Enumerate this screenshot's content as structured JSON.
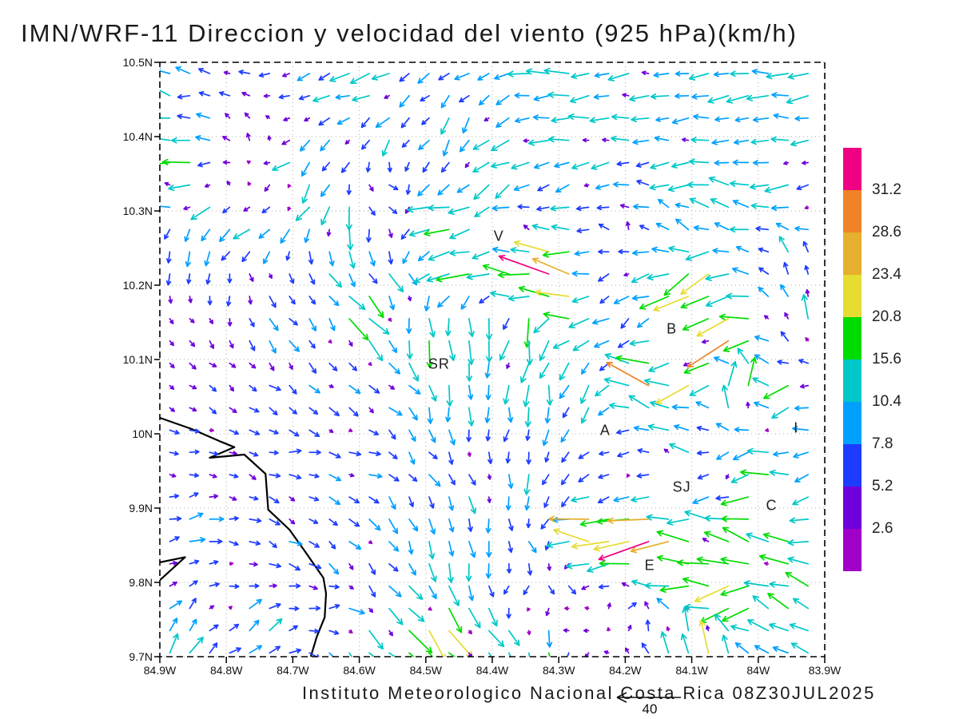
{
  "title": "IMN/WRF-11 Direccion y velocidad del viento (925 hPa)(km/h)",
  "caption": "Instituto Meteorologico Nacional Costa Rica 08Z30JUL2025",
  "reference_arrow": {
    "label": "40",
    "value_kmh": 40
  },
  "chart_data": {
    "type": "vector_field",
    "model": "IMN/WRF-11",
    "variable": "Direccion y velocidad del viento",
    "level": "925 hPa",
    "units": "km/h",
    "valid_time": "08Z30JUL2025",
    "lon_range_w": [
      84.9,
      83.9
    ],
    "lat_range_n": [
      10.5,
      9.7
    ],
    "lon_tick_labels": [
      "84.9W",
      "84.8W",
      "84.7W",
      "84.6W",
      "84.5W",
      "84.4W",
      "84.3W",
      "84.2W",
      "84.1W",
      "84W",
      "83.9W"
    ],
    "lon_tick_values": [
      84.9,
      84.8,
      84.7,
      84.6,
      84.5,
      84.4,
      84.3,
      84.2,
      84.1,
      84.0,
      83.9
    ],
    "lat_tick_labels": [
      "10.5N",
      "10.4N",
      "10.3N",
      "10.2N",
      "10.1N",
      "10N",
      "9.9N",
      "9.8N",
      "9.7N"
    ],
    "lat_tick_values": [
      10.5,
      10.4,
      10.3,
      10.2,
      10.1,
      10.0,
      9.9,
      9.8,
      9.7
    ],
    "grid_deg_spacing": 0.03,
    "speed_levels": [
      2.6,
      5.2,
      7.8,
      10.4,
      15.6,
      20.8,
      23.4,
      28.6,
      31.2
    ],
    "speed_colors": [
      "#A000C8",
      "#6E00DC",
      "#1E3CFF",
      "#00A0FF",
      "#00C8C8",
      "#00DC00",
      "#E6DC32",
      "#E6AF2D",
      "#F08228",
      "#F00082"
    ],
    "colorbar_labels": [
      "31.2",
      "28.6",
      "23.4",
      "20.8",
      "15.6",
      "10.4",
      "7.8",
      "5.2",
      "2.6"
    ],
    "grid_color": "#aaaaaa",
    "frame_color": "#000000",
    "coast_color": "#000000",
    "stations": [
      {
        "label": "V",
        "lon": 84.39,
        "lat": 10.265
      },
      {
        "label": "B",
        "lon": 84.13,
        "lat": 10.14
      },
      {
        "label": "SR",
        "lon": 84.48,
        "lat": 10.092
      },
      {
        "label": "A",
        "lon": 84.23,
        "lat": 10.003
      },
      {
        "label": "SJ",
        "lon": 84.115,
        "lat": 9.927
      },
      {
        "label": "C",
        "lon": 83.98,
        "lat": 9.902
      },
      {
        "label": "E",
        "lon": 84.163,
        "lat": 9.822
      },
      {
        "label": "I",
        "lon": 83.943,
        "lat": 10.006,
        "narrow": true
      }
    ],
    "coastline": [
      [
        [
          84.9,
          10.0215
        ],
        [
          84.852,
          10.0065
        ],
        [
          84.81,
          9.99
        ],
        [
          84.788,
          9.982
        ],
        [
          84.825,
          9.9677
        ],
        [
          84.773,
          9.972
        ],
        [
          84.741,
          9.946
        ],
        [
          84.737,
          9.898
        ],
        [
          84.705,
          9.871
        ],
        [
          84.682,
          9.842
        ],
        [
          84.654,
          9.806
        ],
        [
          84.65,
          9.785
        ],
        [
          84.652,
          9.753
        ],
        [
          84.664,
          9.727
        ],
        [
          84.673,
          9.7
        ]
      ],
      [
        [
          84.9,
          9.827
        ],
        [
          84.862,
          9.834
        ],
        [
          84.9,
          9.803
        ]
      ]
    ],
    "wind_samples_lon_lat_u_v_kmh": [
      [
        84.87,
        10.48,
        -9,
        6
      ],
      [
        84.6,
        10.48,
        -12,
        -2
      ],
      [
        84.3,
        10.48,
        -13,
        0
      ],
      [
        84.0,
        10.48,
        -13,
        0
      ],
      [
        83.92,
        10.48,
        -12,
        -1
      ],
      [
        84.85,
        10.445,
        -7,
        0
      ],
      [
        84.6,
        10.445,
        -10,
        -4
      ],
      [
        84.2,
        10.445,
        -12,
        0
      ],
      [
        83.95,
        10.445,
        -11,
        0
      ],
      [
        84.87,
        10.42,
        -10,
        3
      ],
      [
        84.78,
        10.415,
        -3,
        4
      ],
      [
        84.6,
        10.41,
        -7,
        -7
      ],
      [
        84.45,
        10.41,
        -5,
        -8
      ],
      [
        84.25,
        10.41,
        -11,
        -1
      ],
      [
        84.0,
        10.41,
        -10,
        -1
      ],
      [
        84.87,
        10.39,
        -13,
        1
      ],
      [
        84.75,
        10.39,
        2,
        5
      ],
      [
        84.55,
        10.385,
        -4,
        -8
      ],
      [
        84.35,
        10.39,
        -11,
        -2
      ],
      [
        83.93,
        10.39,
        -10,
        -2
      ],
      [
        84.87,
        10.365,
        -18,
        1
      ],
      [
        84.7,
        10.36,
        -8,
        -6
      ],
      [
        84.45,
        10.36,
        -2,
        -7
      ],
      [
        84.55,
        10.35,
        6,
        -2
      ],
      [
        84.88,
        10.335,
        -12,
        4
      ],
      [
        84.83,
        10.31,
        -13,
        -8
      ],
      [
        84.78,
        10.33,
        1,
        4
      ],
      [
        84.68,
        10.33,
        -5,
        -9
      ],
      [
        84.5,
        10.345,
        -6,
        -6
      ],
      [
        84.4,
        10.33,
        -13,
        -10
      ],
      [
        84.3,
        10.345,
        -9,
        -3
      ],
      [
        84.1,
        10.34,
        -11,
        -2
      ],
      [
        83.94,
        10.33,
        -13,
        -7
      ],
      [
        84.85,
        10.27,
        -1,
        -7
      ],
      [
        84.85,
        10.25,
        0,
        -9
      ],
      [
        84.77,
        10.27,
        -10,
        -10
      ],
      [
        84.68,
        10.29,
        -6,
        -9
      ],
      [
        84.6,
        10.3,
        -1,
        -13
      ],
      [
        84.57,
        10.31,
        9,
        -1
      ],
      [
        84.63,
        10.275,
        2,
        -14
      ],
      [
        84.48,
        10.285,
        -20,
        -2
      ],
      [
        84.42,
        10.26,
        -9,
        -2
      ],
      [
        84.35,
        10.28,
        -3,
        4
      ],
      [
        84.2,
        10.275,
        -2,
        5
      ],
      [
        84.12,
        10.285,
        -8,
        8
      ],
      [
        84.05,
        10.3,
        -12,
        6
      ],
      [
        83.95,
        10.28,
        -9,
        3
      ],
      [
        84.75,
        10.21,
        4,
        -5
      ],
      [
        84.65,
        10.22,
        6,
        -7
      ],
      [
        84.55,
        10.21,
        8,
        -9
      ],
      [
        84.45,
        10.225,
        -21,
        -3
      ],
      [
        84.38,
        10.21,
        -14,
        5
      ],
      [
        84.31,
        10.215,
        -30,
        9
      ],
      [
        84.22,
        10.2,
        -6,
        -3
      ],
      [
        84.1,
        10.195,
        -22,
        -12
      ],
      [
        83.95,
        10.23,
        -2,
        10
      ],
      [
        83.906,
        10.35,
        5,
        1
      ],
      [
        84.85,
        10.15,
        3,
        -3
      ],
      [
        84.72,
        10.15,
        5,
        -6
      ],
      [
        84.6,
        10.16,
        15,
        -15
      ],
      [
        84.5,
        10.13,
        3,
        -18
      ],
      [
        84.42,
        10.15,
        6,
        -16
      ],
      [
        84.33,
        10.14,
        1,
        -21
      ],
      [
        84.3,
        10.17,
        -24,
        3
      ],
      [
        84.2,
        10.14,
        -5,
        -5
      ],
      [
        84.12,
        10.16,
        -11,
        -10
      ],
      [
        84.05,
        10.14,
        -26,
        -14
      ],
      [
        83.97,
        10.16,
        -7,
        7
      ],
      [
        83.92,
        10.15,
        -5,
        14
      ],
      [
        83.906,
        10.2,
        4,
        1
      ],
      [
        84.85,
        10.07,
        4,
        -2
      ],
      [
        84.75,
        10.06,
        6,
        -3
      ],
      [
        84.65,
        10.06,
        8,
        -4
      ],
      [
        84.55,
        10.05,
        9,
        -3
      ],
      [
        84.47,
        10.06,
        1,
        -11
      ],
      [
        84.4,
        10.05,
        0,
        -11
      ],
      [
        84.33,
        10.06,
        0,
        -12
      ],
      [
        84.25,
        10.07,
        -2,
        -11
      ],
      [
        84.17,
        10.07,
        -25,
        17
      ],
      [
        84.1,
        10.08,
        -20,
        -14
      ],
      [
        84.03,
        10.06,
        4,
        24
      ],
      [
        83.95,
        10.05,
        -14,
        -8
      ],
      [
        83.91,
        10.02,
        -14,
        3
      ],
      [
        83.906,
        10.05,
        4,
        0
      ],
      [
        84.85,
        9.98,
        7,
        0
      ],
      [
        84.7,
        9.97,
        7,
        0
      ],
      [
        84.6,
        9.96,
        8,
        -1
      ],
      [
        84.5,
        9.95,
        6,
        -5
      ],
      [
        84.42,
        9.93,
        3,
        -9
      ],
      [
        84.35,
        9.95,
        0,
        -10
      ],
      [
        84.28,
        9.93,
        -4,
        -6
      ],
      [
        84.2,
        9.94,
        -3,
        -3
      ],
      [
        84.12,
        9.96,
        -9,
        9
      ],
      [
        84.05,
        9.95,
        -4,
        -8
      ],
      [
        83.98,
        9.91,
        -22,
        2
      ],
      [
        83.92,
        9.95,
        -9,
        -5
      ],
      [
        84.85,
        9.88,
        8,
        3
      ],
      [
        84.72,
        9.87,
        6,
        -3
      ],
      [
        84.6,
        9.86,
        6,
        -6
      ],
      [
        84.5,
        9.87,
        3,
        -9
      ],
      [
        84.45,
        9.83,
        1,
        -11
      ],
      [
        84.35,
        9.86,
        4,
        -7
      ],
      [
        84.25,
        9.865,
        -32,
        3
      ],
      [
        84.17,
        9.86,
        -27,
        -9
      ],
      [
        84.1,
        9.82,
        -24,
        2
      ],
      [
        84.05,
        9.84,
        -15,
        9
      ],
      [
        83.95,
        9.83,
        -14,
        8
      ],
      [
        83.91,
        9.87,
        -10,
        -4
      ],
      [
        84.87,
        9.72,
        6,
        9
      ],
      [
        84.75,
        9.74,
        7,
        7
      ],
      [
        84.65,
        9.76,
        7,
        2
      ],
      [
        84.6,
        9.72,
        11,
        -12
      ],
      [
        84.52,
        9.74,
        12,
        -12
      ],
      [
        84.47,
        9.735,
        18,
        -18
      ],
      [
        84.4,
        9.72,
        8,
        -13
      ],
      [
        84.33,
        9.71,
        1,
        -16
      ],
      [
        84.28,
        9.75,
        -3,
        2
      ],
      [
        84.35,
        9.78,
        -5,
        -3
      ],
      [
        84.3,
        9.8,
        5,
        -6
      ],
      [
        84.2,
        9.76,
        4,
        4
      ],
      [
        84.13,
        9.72,
        -2,
        15
      ],
      [
        84.07,
        9.71,
        0,
        17
      ],
      [
        83.98,
        9.75,
        -12,
        7
      ],
      [
        83.91,
        9.72,
        -11,
        6
      ],
      [
        84.03,
        9.78,
        -20,
        -10
      ],
      [
        84.55,
        9.9,
        5,
        -7
      ],
      [
        84.65,
        9.9,
        7,
        -3
      ]
    ]
  }
}
